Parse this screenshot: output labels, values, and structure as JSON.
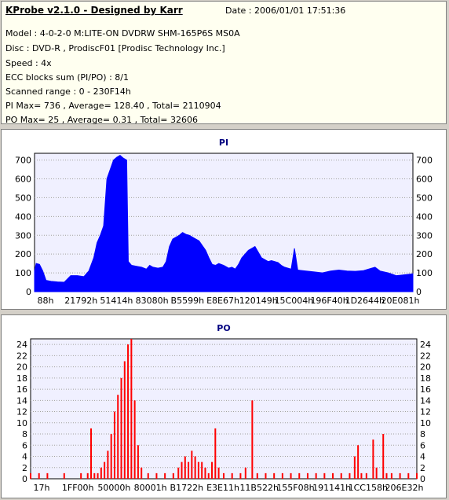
{
  "header": {
    "title": "KProbe v2.1.0 - Designed by Karr",
    "date": "Date : 2006/01/01 17:51:36",
    "lines": [
      "Model : 4-0-2-0 M:LITE-ON DVDRW SHM-165P6S MS0A",
      "Disc : DVD-R , ProdiscF01 [Prodisc Technology Inc.]",
      "Speed : 4x",
      "ECC blocks sum (PI/PO) : 8/1",
      "Scanned range : 0 - 230F14h",
      "PI Max= 736 , Average= 128.40 , Total= 2110904",
      "PO Max= 25 , Average= 0.31 , Total= 32606"
    ]
  },
  "colors": {
    "pi_series": "#0000ff",
    "po_series": "#ff0000",
    "title": "#000080",
    "plot_bg": "#f0f0ff"
  },
  "chart_data": [
    {
      "type": "area",
      "title": "PI",
      "ylim": [
        0,
        736
      ],
      "yticks": [
        0,
        100,
        200,
        300,
        400,
        500,
        600,
        700
      ],
      "xticks": [
        "88h",
        "21792h",
        "51414h",
        "83080h",
        "B5599h",
        "E8E67h",
        "120149h",
        "15C004h",
        "196F40h",
        "1D2644h",
        "20E081h"
      ],
      "xlim": [
        0,
        230
      ],
      "grid": true,
      "series": [
        {
          "values": [
            [
              0,
              110
            ],
            [
              1,
              150
            ],
            [
              3,
              145
            ],
            [
              5,
              110
            ],
            [
              7,
              60
            ],
            [
              10,
              55
            ],
            [
              14,
              52
            ],
            [
              18,
              50
            ],
            [
              22,
              85
            ],
            [
              26,
              85
            ],
            [
              30,
              80
            ],
            [
              33,
              110
            ],
            [
              36,
              180
            ],
            [
              38,
              260
            ],
            [
              40,
              300
            ],
            [
              42,
              350
            ],
            [
              44,
              600
            ],
            [
              46,
              650
            ],
            [
              48,
              700
            ],
            [
              50,
              715
            ],
            [
              52,
              725
            ],
            [
              54,
              710
            ],
            [
              56,
              700
            ],
            [
              57,
              160
            ],
            [
              59,
              140
            ],
            [
              62,
              135
            ],
            [
              65,
              130
            ],
            [
              68,
              120
            ],
            [
              70,
              140
            ],
            [
              72,
              130
            ],
            [
              75,
              125
            ],
            [
              78,
              130
            ],
            [
              80,
              160
            ],
            [
              82,
              240
            ],
            [
              84,
              280
            ],
            [
              86,
              290
            ],
            [
              88,
              300
            ],
            [
              90,
              315
            ],
            [
              92,
              305
            ],
            [
              94,
              300
            ],
            [
              96,
              290
            ],
            [
              98,
              280
            ],
            [
              100,
              270
            ],
            [
              102,
              245
            ],
            [
              104,
              220
            ],
            [
              106,
              180
            ],
            [
              108,
              145
            ],
            [
              110,
              140
            ],
            [
              112,
              150
            ],
            [
              115,
              140
            ],
            [
              118,
              125
            ],
            [
              120,
              130
            ],
            [
              122,
              120
            ],
            [
              124,
              145
            ],
            [
              126,
              180
            ],
            [
              128,
              200
            ],
            [
              130,
              220
            ],
            [
              132,
              230
            ],
            [
              134,
              240
            ],
            [
              136,
              210
            ],
            [
              138,
              180
            ],
            [
              140,
              170
            ],
            [
              142,
              160
            ],
            [
              144,
              165
            ],
            [
              146,
              160
            ],
            [
              148,
              155
            ],
            [
              150,
              140
            ],
            [
              152,
              130
            ],
            [
              154,
              125
            ],
            [
              156,
              120
            ],
            [
              158,
              230
            ],
            [
              160,
              115
            ],
            [
              165,
              110
            ],
            [
              170,
              105
            ],
            [
              175,
              100
            ],
            [
              180,
              110
            ],
            [
              185,
              115
            ],
            [
              190,
              110
            ],
            [
              195,
              108
            ],
            [
              200,
              112
            ],
            [
              205,
              125
            ],
            [
              207,
              130
            ],
            [
              210,
              110
            ],
            [
              215,
              100
            ],
            [
              220,
              85
            ],
            [
              225,
              90
            ],
            [
              230,
              95
            ]
          ],
          "max": 736
        }
      ]
    },
    {
      "type": "bar",
      "title": "PO",
      "ylim": [
        0,
        25
      ],
      "yticks": [
        0,
        2,
        4,
        6,
        8,
        10,
        12,
        14,
        16,
        18,
        20,
        22,
        24
      ],
      "xticks": [
        "17h",
        "1FF00h",
        "50000h",
        "80001h",
        "B1722h",
        "E3E11h",
        "11B522h",
        "155F08h",
        "191141h",
        "1CC158h",
        "206E32h"
      ],
      "xlim": [
        0,
        230
      ],
      "grid": true,
      "series": [
        {
          "values": [
            [
              0,
              1
            ],
            [
              5,
              1
            ],
            [
              10,
              1
            ],
            [
              15,
              0
            ],
            [
              20,
              1
            ],
            [
              25,
              0
            ],
            [
              30,
              1
            ],
            [
              34,
              1
            ],
            [
              36,
              9
            ],
            [
              38,
              1
            ],
            [
              40,
              1
            ],
            [
              42,
              2
            ],
            [
              44,
              3
            ],
            [
              46,
              5
            ],
            [
              48,
              8
            ],
            [
              50,
              12
            ],
            [
              52,
              15
            ],
            [
              54,
              18
            ],
            [
              56,
              21
            ],
            [
              58,
              24
            ],
            [
              60,
              25
            ],
            [
              62,
              14
            ],
            [
              64,
              6
            ],
            [
              66,
              2
            ],
            [
              70,
              1
            ],
            [
              75,
              1
            ],
            [
              80,
              1
            ],
            [
              85,
              1
            ],
            [
              88,
              2
            ],
            [
              90,
              3
            ],
            [
              92,
              4
            ],
            [
              94,
              3
            ],
            [
              96,
              5
            ],
            [
              98,
              4
            ],
            [
              100,
              3
            ],
            [
              102,
              3
            ],
            [
              104,
              2
            ],
            [
              106,
              1
            ],
            [
              108,
              3
            ],
            [
              110,
              9
            ],
            [
              112,
              2
            ],
            [
              115,
              1
            ],
            [
              120,
              1
            ],
            [
              125,
              1
            ],
            [
              128,
              2
            ],
            [
              132,
              14
            ],
            [
              135,
              1
            ],
            [
              140,
              1
            ],
            [
              145,
              1
            ],
            [
              150,
              1
            ],
            [
              155,
              1
            ],
            [
              160,
              1
            ],
            [
              165,
              1
            ],
            [
              170,
              1
            ],
            [
              175,
              1
            ],
            [
              180,
              1
            ],
            [
              185,
              1
            ],
            [
              190,
              1
            ],
            [
              193,
              4
            ],
            [
              195,
              6
            ],
            [
              197,
              1
            ],
            [
              200,
              1
            ],
            [
              204,
              7
            ],
            [
              206,
              2
            ],
            [
              210,
              8
            ],
            [
              212,
              1
            ],
            [
              215,
              1
            ],
            [
              220,
              1
            ],
            [
              225,
              1
            ],
            [
              230,
              1
            ]
          ],
          "max": 25
        }
      ]
    }
  ]
}
